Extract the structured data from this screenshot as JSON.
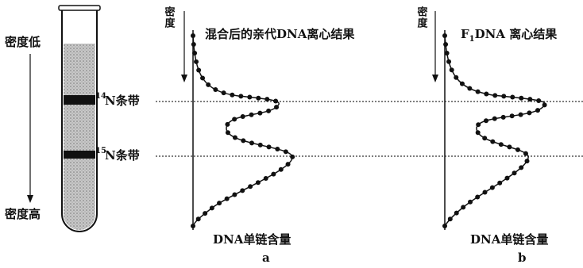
{
  "tube": {
    "top_label": "密度低",
    "bottom_label": "密度高",
    "bands": [
      {
        "mass": "14",
        "label": "N条带"
      },
      {
        "mass": "15",
        "label": "N条带"
      }
    ]
  },
  "panels": [
    {
      "axis_label": "密度",
      "title": "混合后的亲代DNA离心结果",
      "x_label": "DNA单链含量",
      "caption": "a"
    },
    {
      "axis_label": "密度",
      "title": {
        "main": "F",
        "sub": "1",
        "rest": "DNA 离心结果"
      },
      "x_label": "DNA单链含量",
      "caption": "b"
    }
  ]
}
